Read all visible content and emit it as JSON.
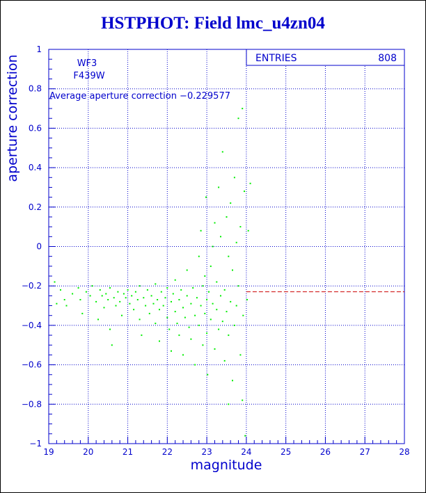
{
  "title": "HSTPHOT: Field lmc_u4zn04",
  "colors": {
    "axis": "#0000cc",
    "points": "#00ee00",
    "mean_line": "#cc0000",
    "title": "#0000cc"
  },
  "chart_data": {
    "type": "scatter",
    "title": "HSTPHOT: Field lmc_u4zn04",
    "xlabel": "magnitude",
    "ylabel": "aperture correction",
    "xlim": [
      19,
      28
    ],
    "ylim": [
      -1,
      1
    ],
    "xticks": [
      19,
      20,
      21,
      22,
      23,
      24,
      25,
      26,
      27,
      28
    ],
    "yticks": [
      -1,
      -0.8,
      -0.6,
      -0.4,
      -0.2,
      0,
      0.2,
      0.4,
      0.6,
      0.8,
      1
    ],
    "xtick_labels": [
      "19",
      "20",
      "21",
      "22",
      "23",
      "24",
      "25",
      "26",
      "27",
      "28"
    ],
    "ytick_labels": [
      "−1",
      "−0.8",
      "−0.6",
      "−0.4",
      "−0.2",
      "0",
      "0.2",
      "0.4",
      "0.6",
      "0.8",
      "1"
    ],
    "grid": true,
    "stats": {
      "label": "ENTRIES",
      "value": "808"
    },
    "annotations": [
      "WF3",
      "F439W",
      "Average aperture correction −0.229577"
    ],
    "mean_value": -0.229577,
    "mean_line_start": 24,
    "points": [
      [
        19.15,
        -0.18
      ],
      [
        19.2,
        -0.29
      ],
      [
        19.3,
        -0.22
      ],
      [
        19.4,
        -0.27
      ],
      [
        19.45,
        -0.3
      ],
      [
        19.6,
        -0.24
      ],
      [
        19.75,
        -0.21
      ],
      [
        19.8,
        -0.27
      ],
      [
        19.85,
        -0.34
      ],
      [
        19.95,
        -0.23
      ],
      [
        20.05,
        -0.25
      ],
      [
        20.1,
        -0.2
      ],
      [
        20.2,
        -0.28
      ],
      [
        20.25,
        -0.37
      ],
      [
        20.3,
        -0.22
      ],
      [
        20.35,
        -0.25
      ],
      [
        20.4,
        -0.31
      ],
      [
        20.45,
        -0.24
      ],
      [
        20.5,
        -0.27
      ],
      [
        20.55,
        -0.21
      ],
      [
        20.55,
        -0.42
      ],
      [
        20.6,
        -0.5
      ],
      [
        20.65,
        -0.26
      ],
      [
        20.7,
        -0.3
      ],
      [
        20.75,
        -0.23
      ],
      [
        20.8,
        -0.28
      ],
      [
        20.85,
        -0.35
      ],
      [
        20.9,
        -0.24
      ],
      [
        20.95,
        -0.26
      ],
      [
        21.0,
        -0.22
      ],
      [
        21.05,
        -0.29
      ],
      [
        21.1,
        -0.25
      ],
      [
        21.15,
        -0.32
      ],
      [
        21.2,
        -0.23
      ],
      [
        21.25,
        -0.27
      ],
      [
        21.3,
        -0.2
      ],
      [
        21.3,
        -0.37
      ],
      [
        21.35,
        -0.45
      ],
      [
        21.4,
        -0.26
      ],
      [
        21.45,
        -0.3
      ],
      [
        21.5,
        -0.22
      ],
      [
        21.55,
        -0.34
      ],
      [
        21.6,
        -0.25
      ],
      [
        21.65,
        -0.29
      ],
      [
        21.7,
        -0.19
      ],
      [
        21.7,
        -0.39
      ],
      [
        21.75,
        -0.27
      ],
      [
        21.8,
        -0.48
      ],
      [
        21.8,
        -0.32
      ],
      [
        21.85,
        -0.23
      ],
      [
        21.9,
        -0.3
      ],
      [
        21.95,
        -0.26
      ],
      [
        22.0,
        -0.36
      ],
      [
        22.0,
        -0.21
      ],
      [
        22.05,
        -0.42
      ],
      [
        22.1,
        -0.28
      ],
      [
        22.1,
        -0.53
      ],
      [
        22.15,
        -0.24
      ],
      [
        22.2,
        -0.33
      ],
      [
        22.2,
        -0.17
      ],
      [
        22.25,
        -0.39
      ],
      [
        22.3,
        -0.27
      ],
      [
        22.3,
        -0.45
      ],
      [
        22.35,
        -0.22
      ],
      [
        22.4,
        -0.31
      ],
      [
        22.4,
        -0.55
      ],
      [
        22.45,
        -0.36
      ],
      [
        22.5,
        -0.25
      ],
      [
        22.5,
        -0.12
      ],
      [
        22.55,
        -0.41
      ],
      [
        22.6,
        -0.29
      ],
      [
        22.6,
        -0.47
      ],
      [
        22.65,
        -0.21
      ],
      [
        22.7,
        -0.35
      ],
      [
        22.7,
        -0.6
      ],
      [
        22.75,
        -0.26
      ],
      [
        22.8,
        -0.05
      ],
      [
        22.8,
        -0.4
      ],
      [
        22.85,
        -0.3
      ],
      [
        22.85,
        0.08
      ],
      [
        22.9,
        -0.5
      ],
      [
        22.9,
        -0.2
      ],
      [
        22.95,
        -0.34
      ],
      [
        22.95,
        -0.15
      ],
      [
        22.98,
        0.25
      ],
      [
        23.0,
        -0.27
      ],
      [
        23.0,
        -0.44
      ],
      [
        23.02,
        -0.65
      ],
      [
        23.05,
        -0.23
      ],
      [
        23.1,
        -0.1
      ],
      [
        23.1,
        -0.37
      ],
      [
        23.15,
        0.0
      ],
      [
        23.15,
        -0.29
      ],
      [
        23.2,
        -0.52
      ],
      [
        23.2,
        0.12
      ],
      [
        23.25,
        -0.32
      ],
      [
        23.25,
        -0.18
      ],
      [
        23.3,
        0.3
      ],
      [
        23.3,
        -0.42
      ],
      [
        23.35,
        -0.25
      ],
      [
        23.35,
        0.05
      ],
      [
        23.4,
        -0.38
      ],
      [
        23.4,
        0.48
      ],
      [
        23.45,
        -0.58
      ],
      [
        23.45,
        -0.22
      ],
      [
        23.5,
        0.15
      ],
      [
        23.5,
        -0.33
      ],
      [
        23.55,
        -0.05
      ],
      [
        23.55,
        -0.45
      ],
      [
        23.6,
        0.22
      ],
      [
        23.6,
        -0.28
      ],
      [
        23.65,
        -0.68
      ],
      [
        23.65,
        -0.12
      ],
      [
        23.7,
        0.35
      ],
      [
        23.7,
        -0.4
      ],
      [
        23.75,
        0.02
      ],
      [
        23.75,
        -0.3
      ],
      [
        23.8,
        0.65
      ],
      [
        23.8,
        -0.2
      ],
      [
        23.85,
        -0.55
      ],
      [
        23.85,
        0.1
      ],
      [
        23.9,
        -0.78
      ],
      [
        23.9,
        0.7
      ],
      [
        23.92,
        -0.35
      ],
      [
        23.95,
        0.28
      ],
      [
        23.97,
        -0.96
      ],
      [
        24.02,
        -0.27
      ],
      [
        24.05,
        0.08
      ],
      [
        24.1,
        0.32
      ],
      [
        23.55,
        -0.8
      ]
    ]
  }
}
